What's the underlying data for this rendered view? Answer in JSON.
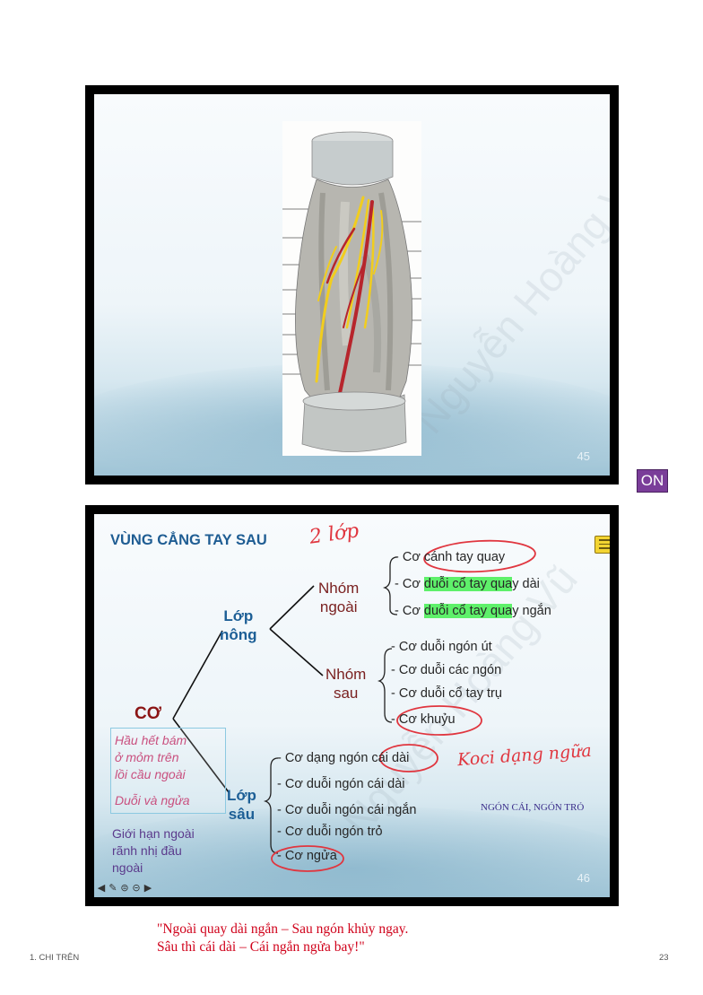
{
  "slide1": {
    "number": "45",
    "watermark": "Nguyễn Hoàng Vũ"
  },
  "on_badge": "ON",
  "slide2": {
    "number": "46",
    "title": "VÙNG CẲNG TAY SAU",
    "watermark": "Nguyễn Hoàng Vũ",
    "handwritten_layers": "2 lớp",
    "handwritten_note": "Koci dạng ngữa",
    "root": "CƠ",
    "superficial": {
      "label_line1": "Lớp",
      "label_line2": "nông",
      "outer_group": {
        "label_line1": "Nhóm",
        "label_line2": "ngoài",
        "items": [
          {
            "text": "- Cơ cánh tay quay"
          },
          {
            "prefix": "- Cơ ",
            "highlight": "duỗi cổ tay qua",
            "suffix": "y dài"
          },
          {
            "prefix": "- Cơ ",
            "highlight": "duỗi cổ tay qua",
            "suffix": "y ngắn"
          }
        ]
      },
      "posterior_group": {
        "label_line1": "Nhóm",
        "label_line2": "sau",
        "items": [
          "- Cơ duỗi ngón út",
          "- Cơ duỗi các ngón",
          "- Cơ duỗi cổ tay trụ",
          "- Cơ khuỷu"
        ]
      }
    },
    "deep": {
      "label_line1": "Lớp",
      "label_line2": "sâu",
      "items": [
        "- Cơ dạng ngón cái dài",
        "- Cơ duỗi ngón cái dài",
        "- Cơ duỗi ngón cái ngắn",
        "- Cơ duỗi ngón trỏ",
        "- Cơ ngửa"
      ]
    },
    "pink_notes": {
      "line1": "Hầu hết bám",
      "line2": "ở mỏm trên",
      "line3": "lồi cầu ngoài",
      "line4": "Duỗi và ngửa"
    },
    "purple_notes": {
      "line1": "Giới hạn ngoài",
      "line2": "rãnh nhị đầu",
      "line3": "ngoài"
    }
  },
  "side_note": "NGÓN CÁI, NGÓN TRỎ",
  "quote": {
    "line1": "\"Ngoài quay dài ngắn – Sau ngón khủy ngay.",
    "line2": "Sâu thì cái dài – Cái ngắn ngửa bay!\""
  },
  "footer": {
    "chapter": "1. CHI TRÊN",
    "page": "23"
  },
  "colors": {
    "title_blue": "#1f5d93",
    "group_red": "#7a2121",
    "highlight_green": "#5ef06a",
    "annotation_red": "#e0363f",
    "badge_purple": "#7a3d99"
  }
}
